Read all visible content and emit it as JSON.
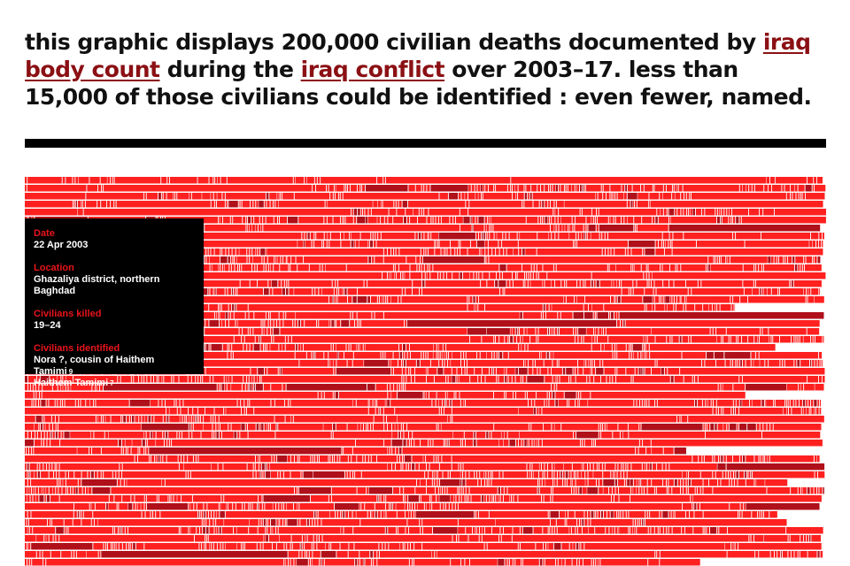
{
  "intro": {
    "text_1": "this graphic displays 200,000 civilian deaths documented by ",
    "link_1": "iraq body count",
    "text_2": " during the ",
    "link_2": "iraq conflict",
    "text_3": " over 2003–17. less than 15,000 of those civilians could be identified : even fewer, named."
  },
  "colors": {
    "accent_red": "#e8141c",
    "bright_red": "#ff2020",
    "dark_red": "#b0101a",
    "link": "#8b1014",
    "divider": "#000000"
  },
  "tooltip": {
    "date_label": "Date",
    "date_value": "22 Apr 2003",
    "location_label": "Location",
    "location_value": "Ghazaliya district, northern Baghdad",
    "killed_label": "Civilians killed",
    "killed_value": "19–24",
    "identified_label": "Civilians identified",
    "identified": [
      {
        "name": "Nora ?, cousin of Haithem Tamimi",
        "age": "9"
      },
      {
        "name": "Haithem Tamimi",
        "age": "7"
      }
    ]
  }
}
